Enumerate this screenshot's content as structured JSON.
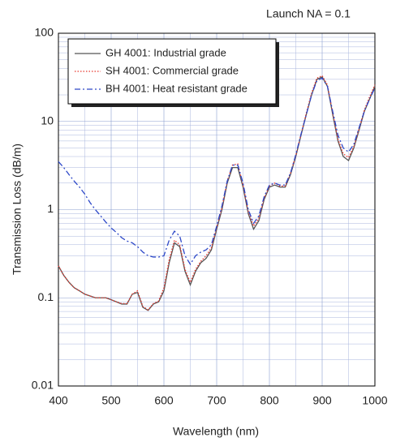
{
  "chart_data": {
    "type": "line",
    "title": "Launch NA = 0.1",
    "x_label": "Wavelength   (nm)",
    "y_label": "Transmission Loss  (dB/m)",
    "x": [
      400,
      410,
      420,
      430,
      440,
      450,
      460,
      470,
      480,
      490,
      500,
      510,
      520,
      530,
      540,
      550,
      560,
      570,
      580,
      590,
      600,
      610,
      620,
      630,
      640,
      650,
      660,
      670,
      680,
      690,
      700,
      710,
      720,
      730,
      740,
      750,
      760,
      770,
      780,
      790,
      800,
      810,
      820,
      830,
      840,
      850,
      860,
      870,
      880,
      890,
      900,
      910,
      920,
      930,
      940,
      950,
      960,
      970,
      980,
      990,
      1000
    ],
    "series": [
      {
        "name": "GH 4001: Industrial grade",
        "color": "#555555",
        "linestyle": "solid",
        "values": [
          0.23,
          0.18,
          0.15,
          0.13,
          0.12,
          0.11,
          0.105,
          0.1,
          0.1,
          0.1,
          0.095,
          0.09,
          0.085,
          0.085,
          0.11,
          0.115,
          0.078,
          0.072,
          0.085,
          0.09,
          0.12,
          0.25,
          0.42,
          0.38,
          0.2,
          0.14,
          0.2,
          0.25,
          0.28,
          0.35,
          0.6,
          1.0,
          2.0,
          3.0,
          3.0,
          1.8,
          0.9,
          0.6,
          0.75,
          1.3,
          1.8,
          1.9,
          1.8,
          1.8,
          2.5,
          4,
          7,
          12,
          20,
          30,
          32,
          25,
          12,
          6,
          4,
          3.6,
          5,
          8,
          13,
          18,
          25
        ]
      },
      {
        "name": "SH 4001: Commercial grade",
        "color": "#e8382f",
        "linestyle": "dotted",
        "values": [
          0.23,
          0.18,
          0.15,
          0.13,
          0.12,
          0.11,
          0.105,
          0.1,
          0.1,
          0.1,
          0.095,
          0.09,
          0.086,
          0.086,
          0.11,
          0.12,
          0.08,
          0.073,
          0.086,
          0.092,
          0.13,
          0.27,
          0.45,
          0.4,
          0.21,
          0.15,
          0.21,
          0.26,
          0.3,
          0.37,
          0.63,
          1.05,
          2.1,
          3.2,
          3.3,
          1.9,
          0.95,
          0.65,
          0.8,
          1.35,
          1.85,
          2.0,
          1.85,
          1.85,
          2.6,
          4.1,
          7.2,
          12.5,
          21,
          31,
          33,
          26,
          12.5,
          6.3,
          4.3,
          3.9,
          5.2,
          8.3,
          13.5,
          19,
          26
        ]
      },
      {
        "name": "BH 4001: Heat resistant grade",
        "color": "#2d48c8",
        "linestyle": "dashdot",
        "values": [
          3.5,
          3.0,
          2.5,
          2.1,
          1.8,
          1.5,
          1.2,
          1.0,
          0.85,
          0.72,
          0.62,
          0.55,
          0.48,
          0.44,
          0.42,
          0.38,
          0.33,
          0.3,
          0.29,
          0.29,
          0.3,
          0.45,
          0.57,
          0.5,
          0.3,
          0.24,
          0.3,
          0.33,
          0.35,
          0.4,
          0.65,
          1.1,
          2.1,
          3.2,
          3.2,
          2.0,
          1.0,
          0.7,
          0.85,
          1.4,
          1.9,
          2.0,
          1.9,
          1.9,
          2.6,
          4.2,
          7.2,
          12,
          20,
          29,
          31,
          25,
          13,
          7,
          5,
          4.5,
          5.5,
          8.5,
          13,
          18,
          24
        ]
      }
    ],
    "xlim": [
      400,
      1000
    ],
    "xticks": [
      400,
      500,
      600,
      700,
      800,
      900,
      1000
    ],
    "ylim": [
      0.01,
      100
    ],
    "yticks": [
      0.01,
      0.1,
      1,
      10,
      100
    ],
    "log_y": true,
    "grid": true,
    "legend_position": "upper left"
  }
}
